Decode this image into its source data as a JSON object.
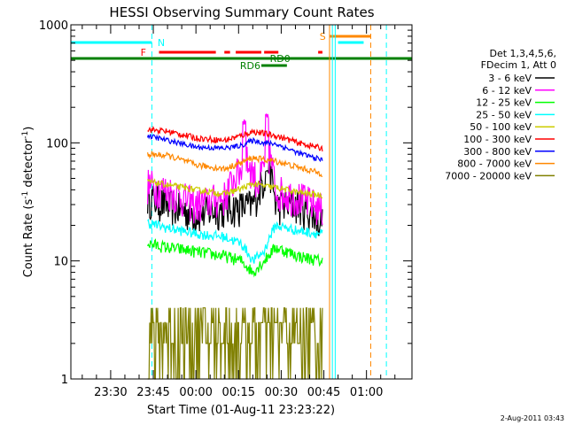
{
  "chart_data": {
    "type": "line",
    "title": "HESSI Observing Summary Count Rates",
    "xlabel": "Start Time (01-Aug-11 23:23:22)",
    "ylabel_main": "Count Rate (s",
    "ylabel_sup": "-1",
    "ylabel_mid": " detector",
    "ylabel_sup2": "-1",
    "ylabel_end": ")",
    "yscale": "log",
    "ylim": [
      1,
      1000
    ],
    "xlim_minutes": [
      -14,
      106
    ],
    "x_ticks": [
      {
        "m": 0,
        "label": "23:30"
      },
      {
        "m": 15,
        "label": "23:45"
      },
      {
        "m": 30,
        "label": "00:00"
      },
      {
        "m": 45,
        "label": "00:15"
      },
      {
        "m": 60,
        "label": "00:30"
      },
      {
        "m": 75,
        "label": "00:45"
      },
      {
        "m": 90,
        "label": "01:00"
      }
    ],
    "y_ticks": [
      {
        "v": 1,
        "label": "1"
      },
      {
        "v": 10,
        "label": "10"
      },
      {
        "v": 100,
        "label": "100"
      },
      {
        "v": 1000,
        "label": "1000"
      }
    ],
    "legend_header": [
      "Det 1,3,4,5,6,",
      "FDecim 1, Att 0"
    ],
    "series": [
      {
        "name": "3 - 6 keV",
        "color": "#000000"
      },
      {
        "name": "6 - 12 keV",
        "color": "#ff00ff"
      },
      {
        "name": "12 - 25 keV",
        "color": "#00ff00"
      },
      {
        "name": "25 - 50 keV",
        "color": "#00ffff"
      },
      {
        "name": "50 - 100 keV",
        "color": "#cccc00"
      },
      {
        "name": "100 - 300 keV",
        "color": "#ff0000"
      },
      {
        "name": "300 - 800 keV",
        "color": "#0000ff"
      },
      {
        "name": "800 - 7000 keV",
        "color": "#ff8800"
      },
      {
        "name": "7000 - 20000 keV",
        "color": "#808000"
      }
    ],
    "flag_labels": {
      "night": "N",
      "flare": "F",
      "saa": "S",
      "rd0": "RD0",
      "rd6": "RD6"
    },
    "timestamp": "2-Aug-2011 03:43"
  }
}
